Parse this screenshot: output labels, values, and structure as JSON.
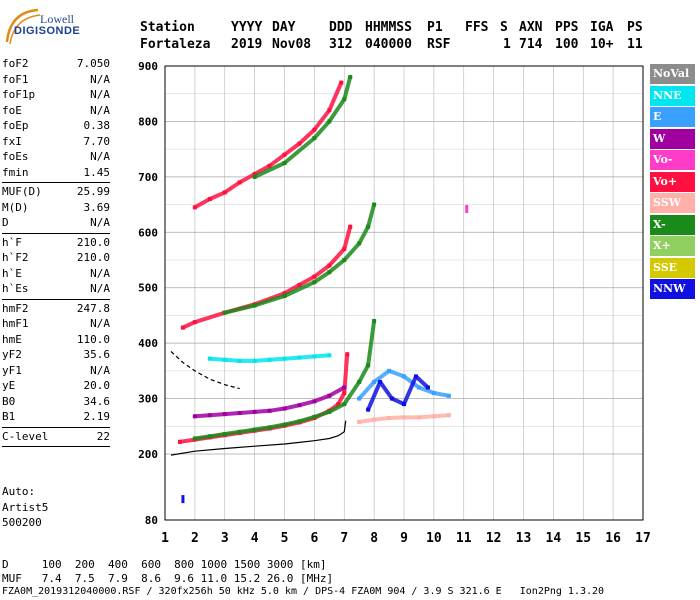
{
  "logo": {
    "line1": "Lowell",
    "line2": "DIGISONDE"
  },
  "header": {
    "columns": [
      "Station",
      "YYYY",
      "DAY",
      "DDD",
      "HHMMSS",
      "P1",
      "FFS",
      "S",
      "AXN",
      "PPS",
      "IGA",
      "PS"
    ],
    "values": [
      "Fortaleza",
      "2019",
      "Nov08",
      "312",
      "040000",
      "RSF",
      "",
      "1",
      "714",
      "100",
      "10+",
      "11"
    ]
  },
  "params": [
    [
      {
        "k": "foF2",
        "v": "7.050"
      },
      {
        "k": "foF1",
        "v": "N/A"
      },
      {
        "k": "foF1p",
        "v": "N/A"
      },
      {
        "k": "foE",
        "v": "N/A"
      },
      {
        "k": "foEp",
        "v": "0.38"
      },
      {
        "k": "fxI",
        "v": "7.70"
      },
      {
        "k": "foEs",
        "v": "N/A"
      },
      {
        "k": "fmin",
        "v": "1.45"
      }
    ],
    [
      {
        "k": "MUF(D)",
        "v": "25.99"
      },
      {
        "k": "M(D)",
        "v": "3.69"
      },
      {
        "k": "D",
        "v": "N/A"
      }
    ],
    [
      {
        "k": "h`F",
        "v": "210.0"
      },
      {
        "k": "h`F2",
        "v": "210.0"
      },
      {
        "k": "h`E",
        "v": "N/A"
      },
      {
        "k": "h`Es",
        "v": "N/A"
      }
    ],
    [
      {
        "k": "hmF2",
        "v": "247.8"
      },
      {
        "k": "hmF1",
        "v": "N/A"
      },
      {
        "k": "hmE",
        "v": "110.0"
      },
      {
        "k": "yF2",
        "v": "35.6"
      },
      {
        "k": "yF1",
        "v": "N/A"
      },
      {
        "k": "yE",
        "v": "20.0"
      },
      {
        "k": "B0",
        "v": "34.6"
      },
      {
        "k": "B1",
        "v": "2.19"
      }
    ],
    [
      {
        "k": "C-level",
        "v": "22"
      }
    ]
  ],
  "autoscale": {
    "line1": "Auto:",
    "line2": "Artist5",
    "line3": "500200"
  },
  "legend": [
    {
      "label": "NoVal",
      "color": "#8c8c8c",
      "text": "#ffffff"
    },
    {
      "label": "NNE",
      "color": "#00e5ee",
      "text": "#ffffff"
    },
    {
      "label": "E",
      "color": "#3aa0ff",
      "text": "#ffffff"
    },
    {
      "label": "W",
      "color": "#a000a0",
      "text": "#ffffff"
    },
    {
      "label": "Vo-",
      "color": "#ff3cc8",
      "text": "#ffffff"
    },
    {
      "label": "Vo+",
      "color": "#ff1040",
      "text": "#ffffff"
    },
    {
      "label": "SSW",
      "color": "#ffb0a8",
      "text": "#ffffff"
    },
    {
      "label": "X-",
      "color": "#1a8a1a",
      "text": "#ffffff"
    },
    {
      "label": "X+",
      "color": "#90d060",
      "text": "#ffffff"
    },
    {
      "label": "SSE",
      "color": "#d4c800",
      "text": "#ffffff"
    },
    {
      "label": "NNW",
      "color": "#1010e0",
      "text": "#ffffff"
    }
  ],
  "footer": {
    "line1": "D     100  200  400  600  800 1000 1500 3000 [km]",
    "line2": "MUF   7.4  7.5  7.9  8.6  9.6 11.0 15.2 26.0 [MHz]",
    "line3": "FZA0M_2019312040000.RSF / 320fx256h 50 kHz 5.0 km / DPS-4 FZA0M 904 / 3.9 S 321.6 E   Ion2Png 1.3.20"
  },
  "chart_data": {
    "type": "scatter",
    "title": "",
    "xlabel": "",
    "ylabel": "",
    "xlim": [
      1,
      17
    ],
    "ylim": [
      80,
      900
    ],
    "x_ticks": [
      1,
      2,
      3,
      4,
      5,
      6,
      7,
      8,
      9,
      10,
      11,
      12,
      13,
      14,
      15,
      16,
      17
    ],
    "y_ticks": [
      80,
      200,
      300,
      400,
      500,
      600,
      700,
      800,
      900
    ],
    "grid": true,
    "trace_kind": "ionogram echo traces (virtual height vs frequency)",
    "series": [
      {
        "name": "Vo+",
        "color": "#ff1040",
        "x": [
          1.5,
          2.0,
          2.5,
          3.0,
          3.5,
          4.0,
          4.5,
          5.0,
          5.5,
          6.0,
          6.5,
          6.8,
          7.0,
          7.1
        ],
        "y": [
          222,
          226,
          230,
          234,
          238,
          242,
          246,
          251,
          257,
          265,
          278,
          290,
          310,
          380
        ]
      },
      {
        "name": "X-",
        "color": "#1a8a1a",
        "x": [
          2.0,
          2.5,
          3.0,
          3.5,
          4.0,
          4.5,
          5.0,
          5.5,
          6.0,
          6.5,
          7.0,
          7.5,
          7.8,
          8.0
        ],
        "y": [
          228,
          232,
          236,
          240,
          244,
          248,
          253,
          259,
          267,
          276,
          290,
          330,
          360,
          440
        ]
      },
      {
        "name": "Vo+",
        "color": "#ff1040",
        "x": [
          1.6,
          2.0,
          3.0,
          4.0,
          5.0,
          5.5,
          6.0,
          6.5,
          7.0,
          7.2
        ],
        "y": [
          428,
          438,
          455,
          470,
          490,
          505,
          520,
          540,
          570,
          610
        ]
      },
      {
        "name": "X-",
        "color": "#1a8a1a",
        "x": [
          3.0,
          4.0,
          5.0,
          6.0,
          6.5,
          7.0,
          7.5,
          7.8,
          8.0
        ],
        "y": [
          455,
          468,
          485,
          510,
          528,
          550,
          580,
          610,
          650
        ]
      },
      {
        "name": "Vo+",
        "color": "#ff1040",
        "x": [
          2.0,
          2.5,
          3.0,
          3.5,
          4.0,
          4.5,
          5.0,
          5.5,
          6.0,
          6.5,
          6.9
        ],
        "y": [
          645,
          660,
          672,
          690,
          705,
          720,
          740,
          760,
          785,
          820,
          870
        ]
      },
      {
        "name": "X-",
        "color": "#1a8a1a",
        "x": [
          4.0,
          5.0,
          6.0,
          6.5,
          7.0,
          7.2
        ],
        "y": [
          700,
          725,
          770,
          800,
          840,
          880
        ]
      },
      {
        "name": "SSW",
        "color": "#ffb0a8",
        "x": [
          7.5,
          8.0,
          8.5,
          9.0,
          9.5,
          10.0,
          10.5
        ],
        "y": [
          258,
          262,
          265,
          266,
          266,
          268,
          270
        ]
      },
      {
        "name": "NNE",
        "color": "#00e5ee",
        "x": [
          2.5,
          3.0,
          3.5,
          4.0,
          4.5,
          5.0,
          5.5,
          6.0,
          6.5
        ],
        "y": [
          372,
          370,
          368,
          368,
          370,
          372,
          374,
          376,
          378
        ]
      },
      {
        "name": "W",
        "color": "#a000a0",
        "x": [
          2.0,
          2.5,
          3.0,
          3.5,
          4.0,
          4.5,
          5.0,
          5.5,
          6.0,
          6.5,
          7.0
        ],
        "y": [
          268,
          270,
          272,
          274,
          276,
          278,
          282,
          288,
          295,
          305,
          320
        ]
      },
      {
        "name": "E",
        "color": "#3aa0ff",
        "x": [
          7.5,
          8.0,
          8.5,
          9.0,
          9.5,
          10.0,
          10.5
        ],
        "y": [
          300,
          330,
          350,
          340,
          320,
          310,
          305
        ]
      },
      {
        "name": "NNW",
        "color": "#1010e0",
        "x": [
          7.8,
          8.2,
          8.6,
          9.0,
          9.4,
          9.8
        ],
        "y": [
          280,
          330,
          300,
          290,
          340,
          320
        ]
      }
    ],
    "profile": {
      "color": "#000000",
      "x": [
        1.2,
        2.0,
        3.0,
        4.0,
        5.0,
        5.5,
        6.0,
        6.5,
        6.8,
        7.0,
        7.05
      ],
      "y": [
        198,
        205,
        210,
        214,
        218,
        221,
        224,
        228,
        233,
        240,
        260
      ]
    },
    "profile_upper": {
      "color": "#000000",
      "style": "dashed",
      "x": [
        1.2,
        1.6,
        2.0,
        2.5,
        3.0,
        3.5
      ],
      "y": [
        385,
        365,
        350,
        335,
        325,
        318
      ]
    },
    "stray_points": [
      {
        "x": 11.1,
        "y": 642,
        "color": "#ff3cc8"
      },
      {
        "x": 1.6,
        "y": 118,
        "color": "#1010e0"
      }
    ]
  }
}
